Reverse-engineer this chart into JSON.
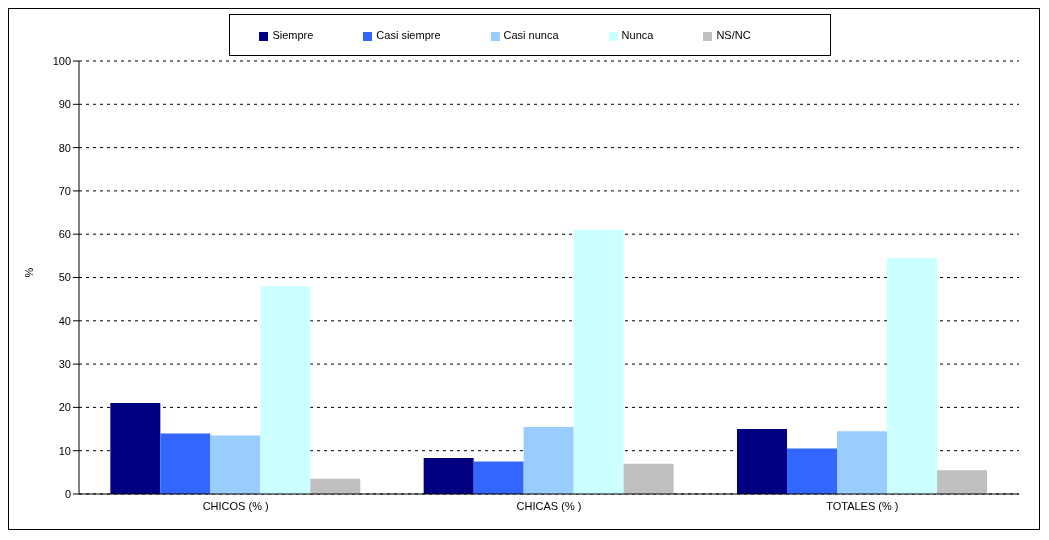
{
  "chart_data": {
    "type": "bar",
    "ylabel": "%",
    "categories": [
      "CHICOS (% )",
      "CHICAS (% )",
      "TOTALES (% )"
    ],
    "series": [
      {
        "name": "Siempre",
        "color": "#000080",
        "values": [
          21,
          8.3,
          15
        ]
      },
      {
        "name": "Casi siempre",
        "color": "#3366ff",
        "values": [
          14,
          7.5,
          10.5
        ]
      },
      {
        "name": "Casi nunca",
        "color": "#99ccff",
        "values": [
          13.5,
          15.5,
          14.5
        ]
      },
      {
        "name": "Nunca",
        "color": "#ccffff",
        "values": [
          48,
          61,
          54.5
        ]
      },
      {
        "name": "NS/NC",
        "color": "#c0c0c0",
        "values": [
          3.5,
          7,
          5.5
        ]
      }
    ],
    "ylim": [
      0,
      100
    ],
    "yticks": [
      0,
      10,
      20,
      30,
      40,
      50,
      60,
      70,
      80,
      90,
      100
    ],
    "grid": "y",
    "legend": "top"
  }
}
